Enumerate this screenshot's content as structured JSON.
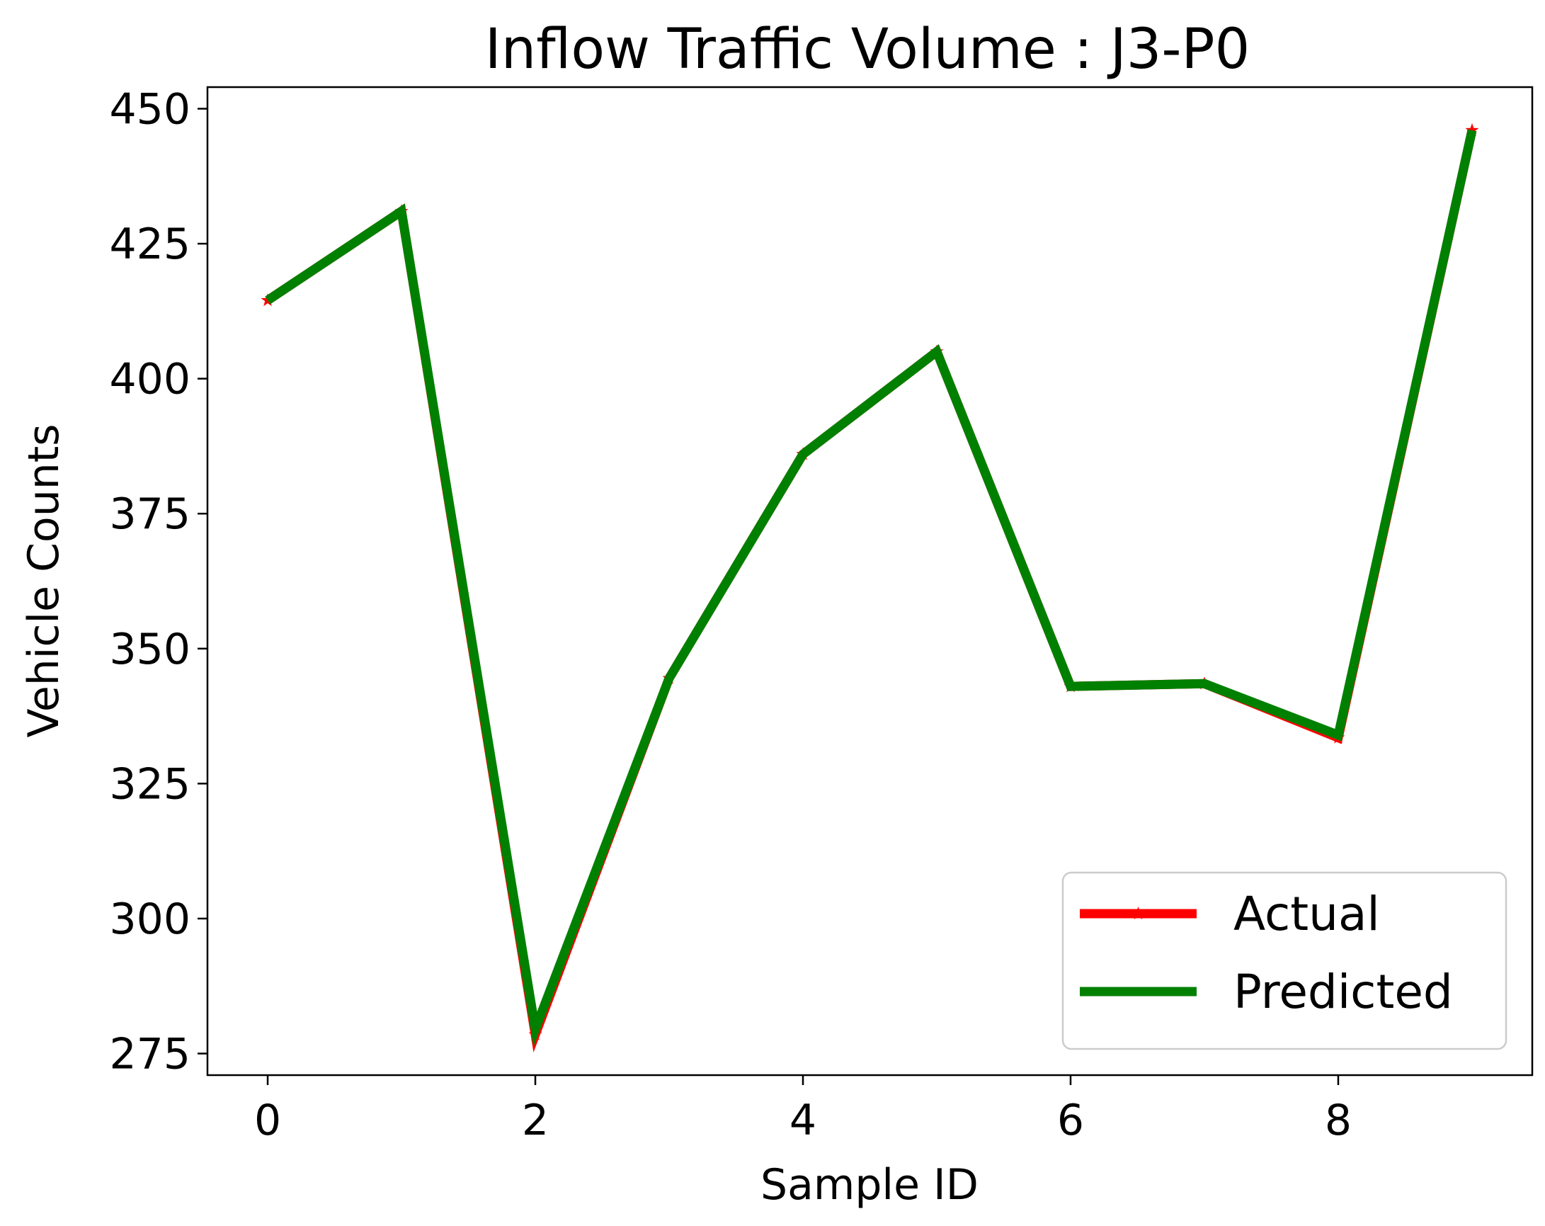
{
  "chart_data": {
    "type": "line",
    "title": "Inflow Traffic Volume : J3-P0",
    "xlabel": "Sample ID",
    "ylabel": "Vehicle Counts",
    "x": [
      0,
      1,
      2,
      3,
      4,
      5,
      6,
      7,
      8,
      9
    ],
    "xlim": [
      -0.45,
      9.45
    ],
    "ylim": [
      271,
      454
    ],
    "xticks": [
      0,
      2,
      4,
      6,
      8
    ],
    "yticks": [
      275,
      300,
      325,
      350,
      375,
      400,
      425,
      450
    ],
    "grid": false,
    "legend_position": "lower-right",
    "series": [
      {
        "name": "Actual",
        "color": "#ff0000",
        "marker": "star",
        "values": [
          414.5,
          431,
          278.5,
          344.5,
          386,
          405,
          343,
          343.5,
          333.5,
          446
        ]
      },
      {
        "name": "Predicted",
        "color": "#008000",
        "marker": "none",
        "values": [
          414.5,
          431,
          279.5,
          344.5,
          386,
          405,
          343,
          343.5,
          334,
          446
        ]
      }
    ]
  }
}
